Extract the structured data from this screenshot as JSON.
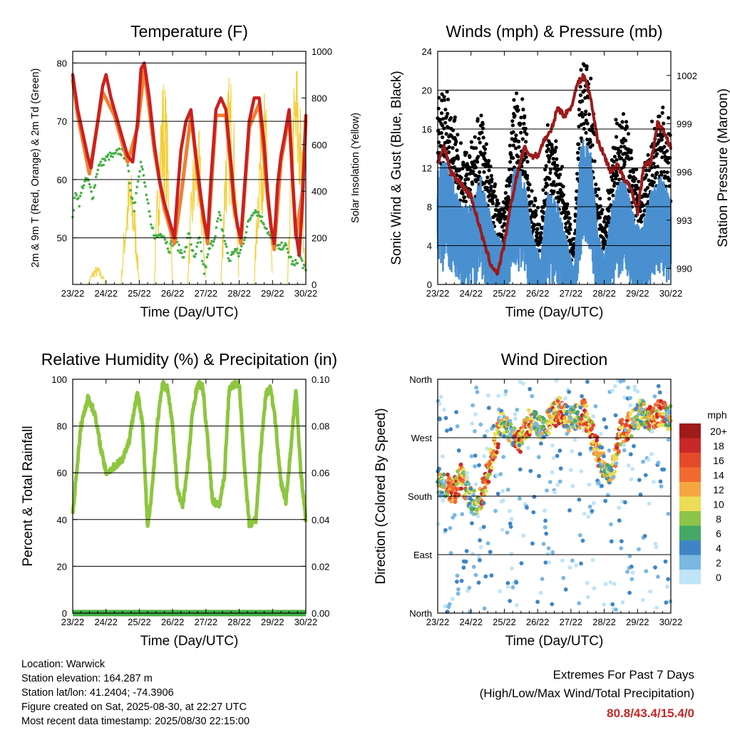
{
  "x_ticks": [
    "23/22",
    "24/22",
    "25/22",
    "26/22",
    "27/22",
    "28/22",
    "29/22",
    "30/22"
  ],
  "chart_data": [
    {
      "type": "line",
      "title": "Temperature (F)",
      "xlabel": "Time (Day/UTC)",
      "ylabel": "2m & 9m T (Red, Orange) & 2m Td (Green)",
      "ylabel_right": "Solar Insolation (Yellow)",
      "x_range_days": [
        0,
        7
      ],
      "ylim": [
        42,
        82
      ],
      "yticks": [
        "50",
        "60",
        "70",
        "80"
      ],
      "ylim_right": [
        0,
        1000
      ],
      "yticks_right": [
        "0",
        "200",
        "400",
        "600",
        "800",
        "1000"
      ],
      "series": [
        {
          "color": "#cc2020",
          "x": [
            0,
            0.05,
            0.15,
            0.3,
            0.45,
            0.55,
            0.65,
            0.8,
            0.9,
            1.0,
            1.15,
            1.25,
            1.45,
            1.65,
            1.8,
            1.95,
            2.05,
            2.15,
            2.3,
            2.45,
            2.6,
            2.75,
            2.9,
            3.05,
            3.15,
            3.25,
            3.4,
            3.55,
            3.7,
            3.85,
            3.95,
            4.05,
            4.15,
            4.3,
            4.45,
            4.6,
            4.75,
            4.85,
            4.95,
            5.05,
            5.15,
            5.3,
            5.45,
            5.6,
            5.75,
            5.85,
            5.95,
            6.05,
            6.15,
            6.25,
            6.35,
            6.5,
            6.6,
            6.7,
            6.8,
            6.9,
            7.0
          ],
          "y": [
            78,
            76,
            72,
            68,
            64,
            62,
            66,
            72,
            76,
            78,
            74,
            72,
            68,
            64,
            63,
            70,
            79,
            80,
            74,
            66,
            60,
            56,
            53,
            50,
            58,
            65,
            70,
            72,
            64,
            57,
            53,
            50,
            60,
            72,
            74,
            72,
            63,
            56,
            52,
            50,
            58,
            70,
            74,
            74,
            66,
            58,
            52,
            49,
            59,
            64,
            67,
            72,
            60,
            51,
            47,
            56,
            71
          ]
        },
        {
          "color": "#f08030",
          "x": [
            0,
            0.15,
            0.5,
            0.9,
            1.25,
            1.65,
            1.95,
            2.15,
            2.45,
            2.75,
            3.05,
            3.25,
            3.55,
            3.85,
            4.05,
            4.3,
            4.6,
            4.85,
            5.05,
            5.3,
            5.6,
            5.85,
            6.05,
            6.25,
            6.5,
            6.7,
            6.9,
            7.0
          ],
          "y": [
            77,
            71,
            61,
            75,
            71,
            63,
            69,
            79,
            65,
            55,
            49,
            57,
            71,
            56,
            49,
            71,
            71,
            55,
            49,
            69,
            73,
            57,
            48,
            63,
            71,
            50,
            58,
            70
          ]
        },
        {
          "color": "#44b044",
          "x": [
            0,
            0.1,
            0.2,
            0.3,
            0.45,
            0.6,
            0.75,
            0.9,
            1.1,
            1.25,
            1.4,
            1.6,
            1.75,
            1.85,
            1.95,
            2.05,
            2.2,
            2.35,
            2.5,
            2.7,
            2.9,
            3.05,
            3.2,
            3.35,
            3.5,
            3.65,
            3.8,
            3.95,
            4.1,
            4.25,
            4.4,
            4.55,
            4.7,
            4.85,
            5.0,
            5.15,
            5.3,
            5.45,
            5.6,
            5.8,
            6.0,
            6.2,
            6.35,
            6.5,
            6.65,
            6.8,
            6.95,
            7.0
          ],
          "y": [
            54,
            58,
            56,
            59,
            60,
            57,
            62,
            63,
            64,
            64,
            65,
            64,
            58,
            55,
            60,
            63,
            58,
            52,
            50,
            51,
            48,
            50,
            48,
            47,
            51,
            46,
            50,
            44,
            48,
            50,
            54,
            50,
            46,
            48,
            47,
            50,
            53,
            55,
            54,
            52,
            49,
            48,
            49,
            47,
            45,
            47,
            45,
            44
          ]
        }
      ],
      "series_right": [
        {
          "color": "#f2d03c",
          "days": [
            0,
            1,
            2,
            3,
            4,
            5,
            6
          ],
          "peaks": [
            80,
            500,
            920,
            710,
            930,
            870,
            1000
          ]
        }
      ]
    },
    {
      "type": "scatter",
      "title": "Winds (mph) & Pressure (mb)",
      "xlabel": "Time (Day/UTC)",
      "ylabel": "Sonic Wind & Gust (Blue, Black)",
      "ylabel_right": "Station Pressure (Maroon)",
      "ylim": [
        0,
        24
      ],
      "yticks": [
        "0",
        "4",
        "8",
        "12",
        "16",
        "20",
        "24"
      ],
      "ylim_right": [
        989,
        1003.5
      ],
      "yticks_right": [
        "990",
        "993",
        "996",
        "999",
        "1002"
      ],
      "pressure": {
        "color": "#9b1b1b",
        "x": [
          0,
          0.2,
          0.4,
          0.6,
          0.8,
          1.0,
          1.2,
          1.4,
          1.6,
          1.8,
          2.0,
          2.2,
          2.4,
          2.6,
          2.8,
          3.0,
          3.2,
          3.4,
          3.6,
          3.8,
          4.0,
          4.2,
          4.4,
          4.6,
          4.8,
          5.0,
          5.2,
          5.4,
          5.6,
          5.8,
          6.0,
          6.2,
          6.4,
          6.6,
          6.8,
          7.0
        ],
        "y": [
          996.5,
          997.5,
          996,
          995.5,
          995,
          994.5,
          993,
          991.5,
          990.2,
          989.7,
          991.5,
          994,
          996,
          997.5,
          997,
          997,
          998,
          998.5,
          1000,
          999.5,
          1000,
          1001.5,
          1002,
          1000.5,
          998,
          997,
          996,
          996.5,
          995.5,
          995,
          993.5,
          996.5,
          996.5,
          999,
          998.5,
          997.5
        ]
      },
      "wind_profile": {
        "x": [
          0,
          0.3,
          0.7,
          1.0,
          1.3,
          1.7,
          2.0,
          2.3,
          2.6,
          2.8,
          3.1,
          3.3,
          3.6,
          3.9,
          4.1,
          4.3,
          4.6,
          4.8,
          5.0,
          5.3,
          5.6,
          5.9,
          6.1,
          6.4,
          6.7,
          7.0
        ],
        "y": [
          9,
          9,
          6,
          6,
          8,
          4,
          3,
          9,
          8,
          4,
          2,
          7,
          6,
          3,
          1,
          11,
          10,
          4,
          2,
          7,
          8,
          5,
          4,
          7,
          8,
          7
        ]
      }
    },
    {
      "type": "line",
      "title": "Relative Humidity (%) & Precipitation (in)",
      "xlabel": "Time (Day/UTC)",
      "ylabel": "Percent & Total Rainfall",
      "ylim": [
        0,
        100
      ],
      "yticks": [
        "0",
        "20",
        "40",
        "60",
        "80",
        "100"
      ],
      "ylim_right": [
        0,
        0.1
      ],
      "yticks_right": [
        "0.00",
        "0.02",
        "0.04",
        "0.06",
        "0.08",
        "0.10"
      ],
      "series": [
        {
          "color": "#8dc63f",
          "x": [
            0,
            0.1,
            0.25,
            0.45,
            0.65,
            0.85,
            1.0,
            1.2,
            1.5,
            1.7,
            1.85,
            1.95,
            2.1,
            2.25,
            2.4,
            2.55,
            2.7,
            2.85,
            3.0,
            3.15,
            3.3,
            3.45,
            3.6,
            3.75,
            3.9,
            4.05,
            4.2,
            4.4,
            4.55,
            4.7,
            4.85,
            5.0,
            5.15,
            5.3,
            5.5,
            5.65,
            5.8,
            5.95,
            6.1,
            6.25,
            6.4,
            6.55,
            6.7,
            6.85,
            7.0
          ],
          "y": [
            42,
            58,
            80,
            92,
            86,
            70,
            60,
            62,
            66,
            74,
            88,
            94,
            80,
            36,
            56,
            82,
            98,
            96,
            80,
            52,
            46,
            62,
            86,
            98,
            97,
            74,
            48,
            46,
            58,
            96,
            98,
            98,
            64,
            38,
            40,
            70,
            94,
            96,
            80,
            56,
            48,
            70,
            96,
            60,
            40
          ]
        },
        {
          "color": "#44b044",
          "x": [
            0,
            7
          ],
          "y": [
            0,
            0
          ]
        }
      ]
    },
    {
      "type": "scatter",
      "title": "Wind Direction",
      "xlabel": "Time (Day/UTC)",
      "ylabel": "Direction (Colored By Speed)",
      "yticks": [
        "North",
        "East",
        "South",
        "West",
        "North"
      ],
      "legend": {
        "title": "mph",
        "labels": [
          "20+",
          "18",
          "16",
          "14",
          "12",
          "10",
          "8",
          "6",
          "4",
          "2",
          "0"
        ],
        "colors": [
          "#a01a1a",
          "#c82828",
          "#e44a2a",
          "#f26a30",
          "#f5a640",
          "#eddc55",
          "#8ec44a",
          "#46a866",
          "#3f85c6",
          "#7ab8e2",
          "#bfe4f7"
        ]
      },
      "dir_profile": {
        "x": [
          0,
          0.3,
          0.5,
          0.7,
          0.9,
          1.2,
          1.6,
          1.9,
          2.2,
          2.5,
          2.8,
          3.1,
          3.4,
          3.7,
          3.9,
          4.1,
          4.4,
          4.7,
          4.9,
          5.2,
          5.5,
          5.8,
          6.1,
          6.4,
          6.7,
          7.0
        ],
        "y": [
          200,
          196,
          188,
          210,
          184,
          160,
          235,
          292,
          278,
          265,
          300,
          280,
          300,
          315,
          298,
          300,
          310,
          265,
          235,
          210,
          280,
          290,
          310,
          300,
          310,
          300
        ]
      }
    }
  ],
  "info": {
    "location": "Location: Warwick",
    "elevation": "Station elevation: 164.287 m",
    "latlon": "Station lat/lon: 41.2404; -74.3906",
    "created": "Figure created on Sat, 2025-08-30, at 22:27 UTC",
    "recent": "Most recent data timestamp: 2025/08/30 22:15:00"
  },
  "extremes": {
    "title": "Extremes For Past 7 Days",
    "subtitle": "(High/Low/Max Wind/Total Precipitation)",
    "values": "80.8/43.4/15.4/0"
  }
}
